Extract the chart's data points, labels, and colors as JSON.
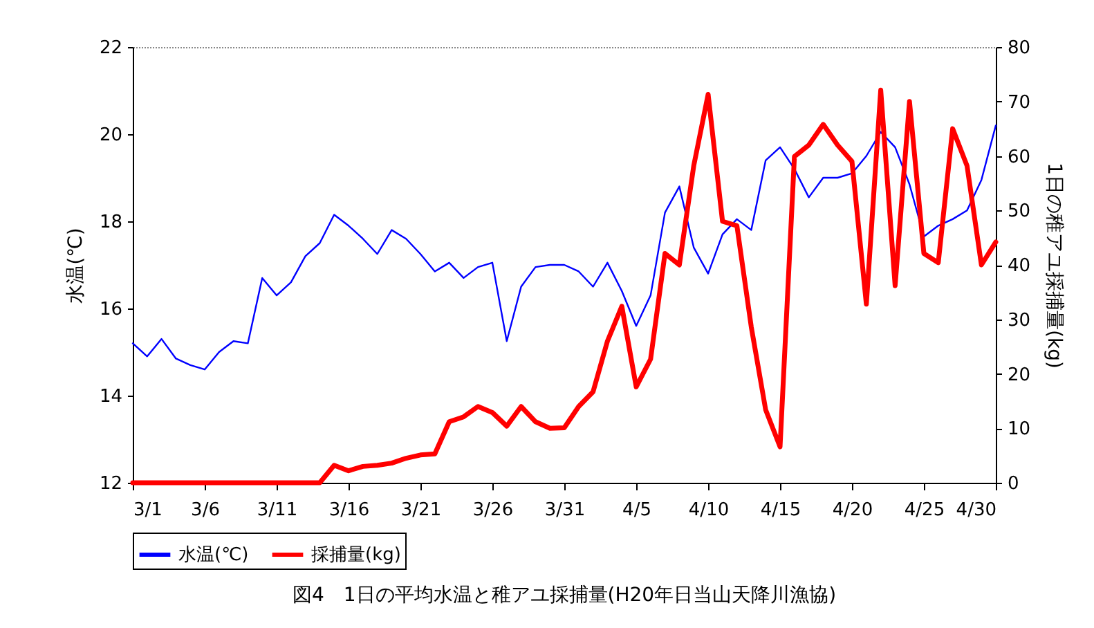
{
  "chart_data": {
    "type": "line",
    "title": "図4　1日の平均水温と稚アユ採捕量(H20年日当山天降川漁協)",
    "ylabel": "水温(℃)",
    "y2label": "1日の稚アユ採捕量(kg)",
    "x": [
      "--03-01",
      "--03-02",
      "--03-03",
      "--03-04",
      "--03-05",
      "--03-06",
      "--03-07",
      "--03-08",
      "--03-09",
      "--03-10",
      "--03-11",
      "--03-12",
      "--03-13",
      "--03-14",
      "--03-15",
      "--03-16",
      "--03-17",
      "--03-18",
      "--03-19",
      "--03-20",
      "--03-21",
      "--03-22",
      "--03-23",
      "--03-24",
      "--03-25",
      "--03-26",
      "--03-27",
      "--03-28",
      "--03-29",
      "--03-30",
      "--03-31",
      "--04-01",
      "--04-02",
      "--04-03",
      "--04-04",
      "--04-05",
      "--04-06",
      "--04-07",
      "--04-08",
      "--04-09",
      "--04-10",
      "--04-11",
      "--04-12",
      "--04-13",
      "--04-14",
      "--04-15",
      "--04-16",
      "--04-17",
      "--04-18",
      "--04-19",
      "--04-20",
      "--04-21",
      "--04-22",
      "--04-23",
      "--04-24",
      "--04-25",
      "--04-26",
      "--04-27",
      "--04-28",
      "--04-29",
      "--04-30"
    ],
    "series": [
      {
        "name": "水温(℃)",
        "color": "#0000ff",
        "values": [
          15.2,
          14.9,
          15.3,
          14.85,
          14.7,
          14.6,
          15.0,
          15.25,
          15.2,
          16.7,
          16.3,
          16.6,
          17.2,
          17.5,
          18.15,
          17.9,
          17.6,
          17.25,
          17.8,
          17.6,
          17.25,
          16.85,
          17.05,
          16.7,
          16.95,
          17.05,
          15.25,
          16.5,
          16.95,
          17.0,
          17.0,
          16.85,
          16.5,
          17.05,
          16.4,
          15.6,
          16.3,
          18.2,
          18.8,
          17.4,
          16.8,
          17.7,
          18.05,
          17.8,
          19.4,
          19.7,
          19.2,
          18.55,
          19.0,
          19.0,
          19.1,
          19.5,
          20.05,
          19.7,
          18.85,
          17.65,
          17.9,
          18.05,
          18.25,
          18.95,
          20.2
        ]
      },
      {
        "name": "採捕量(kg)",
        "color": "#ff0000",
        "axis": "y2",
        "values": [
          0,
          0,
          0,
          0,
          0,
          0,
          0,
          0,
          0,
          0,
          0,
          0,
          0,
          0,
          3.2,
          2.2,
          3.0,
          3.2,
          3.6,
          4.5,
          5.1,
          5.3,
          11.2,
          12.1,
          14.0,
          12.9,
          10.4,
          14.0,
          11.2,
          10.0,
          10.1,
          14.0,
          16.7,
          26.0,
          32.4,
          17.6,
          22.7,
          42.1,
          40.0,
          58.2,
          71.3,
          48.0,
          47.2,
          28.6,
          13.4,
          6.6,
          59.9,
          62.0,
          65.8,
          62.0,
          59.0,
          32.8,
          72.1,
          36.2,
          70.0,
          42.1,
          40.4,
          65.0,
          58.2,
          40.0,
          44.2
        ]
      }
    ],
    "xlim": [
      "--03-01",
      "--04-30"
    ],
    "xticks": [
      {
        "value": "--03-01",
        "label": "3/1"
      },
      {
        "value": "--03-06",
        "label": "3/6"
      },
      {
        "value": "--03-11",
        "label": "3/11"
      },
      {
        "value": "--03-16",
        "label": "3/16"
      },
      {
        "value": "--03-21",
        "label": "3/21"
      },
      {
        "value": "--03-26",
        "label": "3/26"
      },
      {
        "value": "--03-31",
        "label": "3/31"
      },
      {
        "value": "--04-05",
        "label": "4/5"
      },
      {
        "value": "--04-10",
        "label": "4/10"
      },
      {
        "value": "--04-15",
        "label": "4/15"
      },
      {
        "value": "--04-20",
        "label": "4/20"
      },
      {
        "value": "--04-25",
        "label": "4/25"
      },
      {
        "value": "--04-30",
        "label": "4/30"
      }
    ],
    "ylim": [
      12,
      22
    ],
    "yticks": [
      12,
      14,
      16,
      18,
      20,
      22
    ],
    "y2lim": [
      0,
      80
    ],
    "y2ticks": [
      0,
      10,
      20,
      30,
      40,
      50,
      60,
      70,
      80
    ],
    "grid": false,
    "legend": "bottom",
    "marker": "none",
    "line_style": "solid"
  }
}
